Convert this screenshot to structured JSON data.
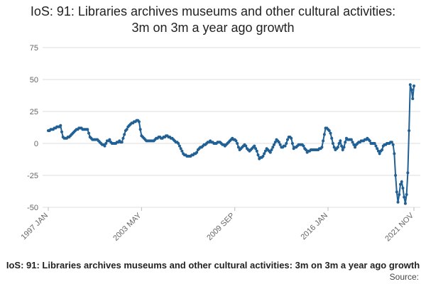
{
  "chart_data": {
    "type": "line",
    "title": "IoS: 91: Libraries archives museums and other cultural activities: 3m on 3m a year ago growth",
    "footer": "IoS: 91: Libraries archives museums and other cultural activities: 3m on 3m a year ago growth",
    "source": "Source:",
    "categories": [
      "1997 JAN",
      null,
      null,
      null,
      null,
      null,
      null,
      null,
      null,
      null,
      null,
      null,
      null,
      null,
      null,
      null,
      null,
      null,
      null,
      null,
      null,
      null,
      null,
      null,
      null,
      null,
      null,
      null,
      null,
      null,
      null,
      null,
      null,
      null,
      null,
      null,
      null,
      null,
      null,
      null,
      null,
      null,
      null,
      null,
      null,
      null,
      null,
      null,
      null,
      null,
      null,
      null,
      null,
      null,
      null,
      null,
      null,
      null,
      null,
      null,
      null,
      null,
      null,
      null,
      null,
      null,
      null,
      null,
      null,
      null,
      null,
      null,
      null,
      null,
      null,
      null,
      "2003 MAY",
      null,
      null,
      null,
      null,
      null,
      null,
      null,
      null,
      null,
      null,
      null,
      null,
      null,
      null,
      null,
      null,
      null,
      null,
      null,
      null,
      null,
      null,
      null,
      null,
      null,
      null,
      null,
      null,
      null,
      null,
      null,
      null,
      null,
      null,
      null,
      null,
      null,
      null,
      null,
      null,
      null,
      null,
      null,
      null,
      null,
      null,
      null,
      null,
      null,
      null,
      null,
      null,
      null,
      null,
      null,
      null,
      null,
      null,
      null,
      null,
      null,
      null,
      null,
      null,
      null,
      null,
      null,
      null,
      null,
      null,
      null,
      null,
      null,
      null,
      null,
      "2009 SEP",
      null,
      null,
      null,
      null,
      null,
      null,
      null,
      null,
      null,
      null,
      null,
      null,
      null,
      null,
      null,
      null,
      null,
      null,
      null,
      null,
      null,
      null,
      null,
      null,
      null,
      null,
      null,
      null,
      null,
      null,
      null,
      null,
      null,
      null,
      null,
      null,
      null,
      null,
      null,
      null,
      null,
      null,
      null,
      null,
      null,
      null,
      null,
      null,
      null,
      null,
      null,
      null,
      null,
      null,
      null,
      null,
      null,
      null,
      null,
      null,
      null,
      null,
      null,
      null,
      null,
      null,
      null,
      null,
      null,
      null,
      null,
      null,
      null,
      null,
      null,
      "2016 JAN",
      null,
      null,
      null,
      null,
      null,
      null,
      null,
      null,
      null,
      null,
      null,
      null,
      null,
      null,
      null,
      null,
      null,
      null,
      null,
      null,
      null,
      null,
      null,
      null,
      null,
      null,
      null,
      null,
      null,
      null,
      null,
      null,
      null,
      null,
      null,
      null,
      null,
      null,
      null,
      null,
      null,
      null,
      null,
      null,
      null,
      null,
      null,
      null,
      null,
      null,
      null,
      null,
      null,
      null,
      null,
      null,
      null,
      null,
      null,
      null,
      null,
      null,
      null,
      null,
      null,
      null,
      null,
      null,
      null,
      "2021 NOV"
    ],
    "series": [
      {
        "color": "#206095",
        "values": [
          10,
          10,
          11,
          11,
          11,
          12,
          12,
          13,
          13,
          13,
          14,
          9,
          5,
          4,
          4,
          4,
          5,
          5,
          6,
          7,
          8,
          9,
          10,
          11,
          11,
          12,
          12,
          12,
          11,
          11,
          11,
          11,
          11,
          8,
          5,
          4,
          3,
          3,
          3,
          3,
          3,
          2,
          1,
          0,
          -1,
          -1,
          -2,
          0,
          2,
          2,
          3,
          1,
          0,
          0,
          0,
          0,
          1,
          1,
          2,
          1,
          1,
          4,
          7,
          10,
          11,
          13,
          14,
          15,
          16,
          16,
          17,
          17,
          18,
          18,
          17,
          11,
          6,
          5,
          4,
          3,
          2,
          2,
          2,
          2,
          2,
          2,
          2,
          3,
          4,
          4,
          5,
          5,
          4,
          4,
          5,
          5,
          6,
          6,
          5,
          5,
          4,
          4,
          3,
          2,
          1,
          1,
          0,
          -2,
          -4,
          -6,
          -8,
          -9,
          -9,
          -10,
          -10,
          -10,
          -10,
          -9,
          -9,
          -8,
          -8,
          -7,
          -5,
          -4,
          -3,
          -3,
          -2,
          -1,
          -1,
          0,
          1,
          1,
          2,
          1,
          1,
          0,
          0,
          0,
          1,
          1,
          1,
          0,
          -1,
          -1,
          -2,
          -1,
          0,
          1,
          2,
          3,
          4,
          3,
          3,
          2,
          0,
          -3,
          -5,
          -4,
          -3,
          -2,
          -1,
          -2,
          -4,
          -5,
          -6,
          -5,
          -4,
          -3,
          -2,
          -4,
          -6,
          -9,
          -12,
          -11,
          -11,
          -10,
          -8,
          -6,
          -4,
          -5,
          -6,
          -7,
          -5,
          -3,
          -1,
          1,
          3,
          2,
          1,
          -1,
          -3,
          -3,
          -2,
          -2,
          0,
          3,
          5,
          5,
          4,
          0,
          -4,
          -3,
          -3,
          -2,
          -1,
          -1,
          -1,
          -1,
          -2,
          -4,
          -5,
          -7,
          -6,
          -6,
          -5,
          -5,
          -5,
          -5,
          -5,
          -5,
          -5,
          -4,
          -4,
          -3,
          2,
          7,
          12,
          12,
          11,
          10,
          8,
          4,
          0,
          -3,
          -5,
          -4,
          -3,
          0,
          2,
          -2,
          -5,
          -3,
          1,
          4,
          3,
          3,
          3,
          3,
          1,
          -1,
          -3,
          -1,
          0,
          1,
          1,
          2,
          2,
          2,
          3,
          3,
          4,
          3,
          2,
          0,
          0,
          0,
          0,
          -2,
          -4,
          -6,
          -8,
          -6,
          -5,
          -2,
          -1,
          -1,
          0,
          0,
          0,
          1,
          1,
          -1,
          -8,
          -25,
          -38,
          -46,
          -40,
          -32,
          -30,
          -35,
          -42,
          -47,
          -40,
          -23,
          10,
          46,
          42,
          35,
          45
        ]
      }
    ],
    "ylim": [
      -50,
      75
    ],
    "yticks": [
      -50,
      -25,
      0,
      25,
      50,
      75
    ],
    "grid": true,
    "markers": true
  }
}
